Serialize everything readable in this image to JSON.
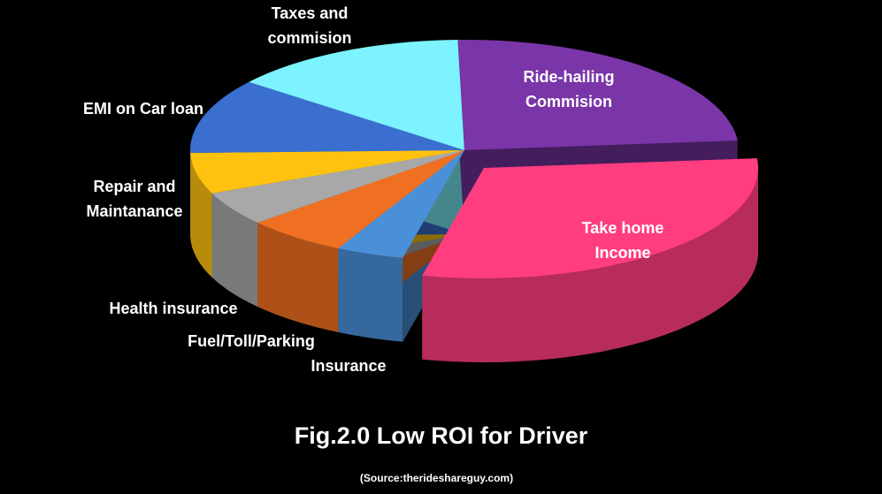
{
  "chart_data": {
    "type": "pie",
    "title": "Fig.2.0 Low ROI for Driver",
    "source": "(Source:therideshareguy.com)",
    "slices": [
      {
        "name": "Take home Income",
        "label_lines": [
          "Take home",
          "Income"
        ],
        "value": 30,
        "color": "#FF3D7F",
        "exploded": true
      },
      {
        "name": "Insurance",
        "label_lines": [
          "Insurance"
        ],
        "value": 4,
        "color": "#4A90D9"
      },
      {
        "name": "Fuel/Toll/Parking",
        "label_lines": [
          "Fuel/Toll/Parking"
        ],
        "value": 6,
        "color": "#F07023"
      },
      {
        "name": "Health insurance",
        "label_lines": [
          "Health insurance"
        ],
        "value": 5,
        "color": "#A8A8A8"
      },
      {
        "name": "Repair and Maintanance",
        "label_lines": [
          "Repair and",
          "Maintanance"
        ],
        "value": 6,
        "color": "#FFC20E"
      },
      {
        "name": "EMI on Car loan",
        "label_lines": [
          "EMI  on Car loan"
        ],
        "value": 11,
        "color": "#3A6FD0"
      },
      {
        "name": "Taxes and commision",
        "label_lines": [
          "Taxes and",
          "commision"
        ],
        "value": 14,
        "color": "#7CF3FF"
      },
      {
        "name": "Ride-hailing Commision",
        "label_lines": [
          "Ride-hailing",
          "Commision"
        ],
        "value": 24,
        "color": "#7A35A8"
      }
    ]
  }
}
